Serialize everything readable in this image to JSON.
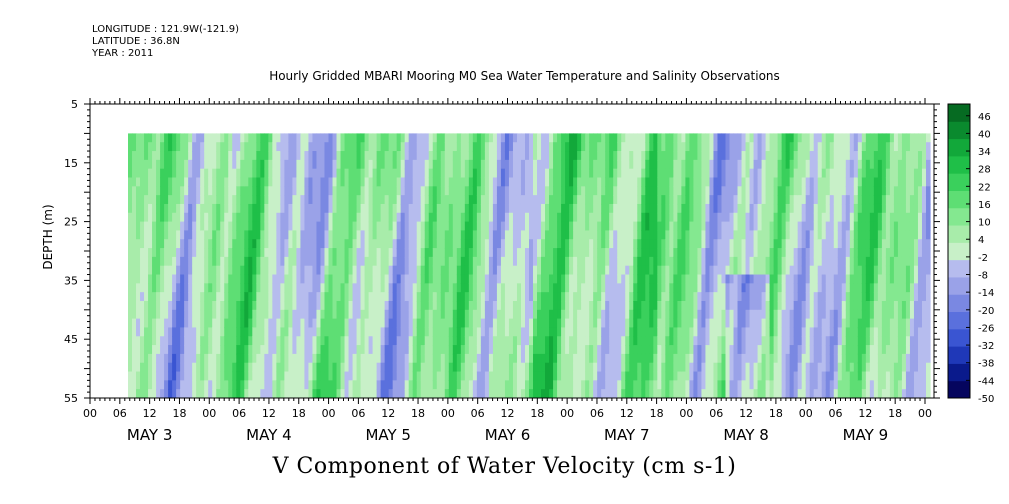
{
  "header": {
    "longitude": "LONGITUDE : 121.9W(-121.9)",
    "latitude": "LATITUDE : 36.8N",
    "year": "YEAR : 2011"
  },
  "plot_title": "Hourly Gridded MBARI Mooring M0 Sea Water Temperature and Salinity Observations",
  "main_title": "V Component of Water Velocity (cm s-1)",
  "chart_data": {
    "type": "heatmap",
    "ylabel": "DEPTH (m)",
    "y_range": [
      5,
      55
    ],
    "y_reversed": true,
    "y_ticks": [
      "5",
      "15",
      "25",
      "35",
      "45",
      "55"
    ],
    "data_depth_range": [
      10,
      55
    ],
    "x_hour_ticks": [
      "00",
      "06",
      "12",
      "18",
      "00",
      "06",
      "12",
      "18",
      "00",
      "06",
      "12",
      "18",
      "00",
      "06",
      "12",
      "18",
      "00",
      "06",
      "12",
      "18",
      "00",
      "06",
      "12",
      "18",
      "00",
      "06",
      "12",
      "18",
      "00"
    ],
    "day_labels": [
      "MAY  3",
      "MAY  4",
      "MAY  5",
      "MAY  6",
      "MAY  7",
      "MAY  8",
      "MAY  9"
    ],
    "colorbar": {
      "tick_labels": [
        "46",
        "40",
        "34",
        "28",
        "22",
        "16",
        "10",
        "4",
        "-2",
        "-8",
        "-14",
        "-20",
        "-26",
        "-32",
        "-38",
        "-44",
        "-50"
      ],
      "range": [
        -50,
        50
      ]
    }
  }
}
